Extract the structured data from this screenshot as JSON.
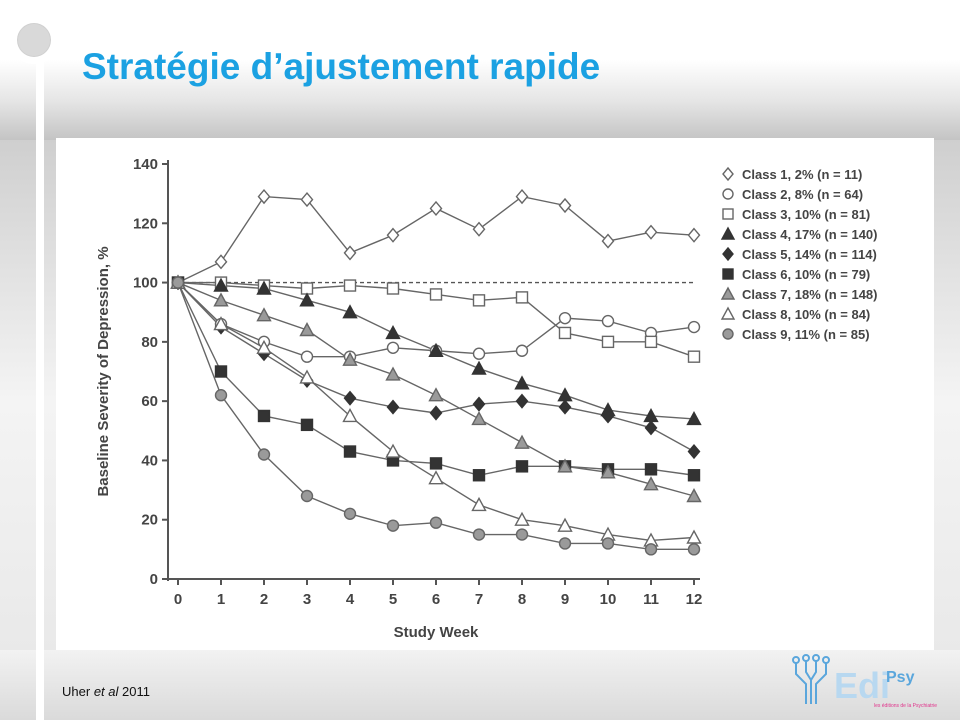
{
  "slide": {
    "title": "Stratégie d’ajustement rapide",
    "citation": {
      "author": "Uher",
      "etal": "et al",
      "year": "2011"
    },
    "logo": {
      "brand": "Edi",
      "suffix": "Psy",
      "tagline": "les éditions de la Psychiatrie"
    }
  },
  "colors": {
    "title": "#1ba1e2",
    "series_dark": "#333333",
    "series_mid": "#666666",
    "series_light": "#9a9a9a",
    "logo_blue": "#5aa6dc",
    "logo_pink": "#e0338b"
  },
  "chart_data": {
    "type": "line",
    "title": "",
    "xlabel": "Study Week",
    "ylabel": "Baseline Severity of Depression, %",
    "x": [
      0,
      1,
      2,
      3,
      4,
      5,
      6,
      7,
      8,
      9,
      10,
      11,
      12
    ],
    "xlim": [
      0,
      12
    ],
    "ylim": [
      0,
      140
    ],
    "yticks": [
      0,
      20,
      40,
      60,
      80,
      100,
      120,
      140
    ],
    "reference_line": {
      "y": 100,
      "style": "dashed"
    },
    "grid": false,
    "legend_position": "top-right",
    "series": [
      {
        "name": "Class 1, 2% (n = 11)",
        "marker": "diamond-open",
        "values": [
          100,
          107,
          129,
          128,
          110,
          116,
          125,
          118,
          129,
          126,
          114,
          117,
          116
        ]
      },
      {
        "name": "Class 2, 8% (n = 64)",
        "marker": "circle-open",
        "values": [
          100,
          86,
          80,
          75,
          75,
          78,
          77,
          76,
          77,
          88,
          87,
          83,
          85
        ]
      },
      {
        "name": "Class 3, 10% (n = 81)",
        "marker": "square-open",
        "values": [
          100,
          100,
          99,
          98,
          99,
          98,
          96,
          94,
          95,
          83,
          80,
          80,
          75
        ]
      },
      {
        "name": "Class 4, 17% (n = 140)",
        "marker": "triangle-dark",
        "values": [
          100,
          99,
          98,
          94,
          90,
          83,
          77,
          71,
          66,
          62,
          57,
          55,
          54
        ]
      },
      {
        "name": "Class 5, 14% (n = 114)",
        "marker": "diamond-dark",
        "values": [
          100,
          85,
          76,
          67,
          61,
          58,
          56,
          59,
          60,
          58,
          55,
          51,
          43
        ]
      },
      {
        "name": "Class 6, 10% (n = 79)",
        "marker": "square-dark",
        "values": [
          100,
          70,
          55,
          52,
          43,
          40,
          39,
          35,
          38,
          38,
          37,
          37,
          35
        ]
      },
      {
        "name": "Class 7, 18% (n = 148)",
        "marker": "triangle-grey",
        "values": [
          100,
          94,
          89,
          84,
          74,
          69,
          62,
          54,
          46,
          38,
          36,
          32,
          28
        ]
      },
      {
        "name": "Class 8, 10% (n = 84)",
        "marker": "triangle-open",
        "values": [
          100,
          86,
          78,
          68,
          55,
          43,
          34,
          25,
          20,
          18,
          15,
          13,
          14
        ]
      },
      {
        "name": "Class 9, 11% (n = 85)",
        "marker": "circle-grey",
        "values": [
          100,
          62,
          42,
          28,
          22,
          18,
          19,
          15,
          15,
          12,
          12,
          10,
          10
        ]
      }
    ]
  }
}
